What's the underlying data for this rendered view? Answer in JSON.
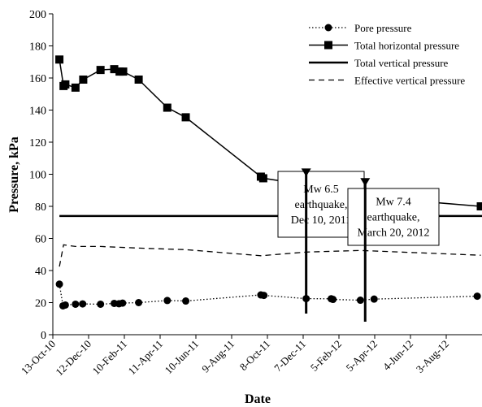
{
  "chart_data": {
    "type": "line",
    "ylabel": "Pressure, kPa",
    "xlabel": "Date",
    "ylim": [
      0,
      200
    ],
    "yticks": [
      0,
      20,
      40,
      60,
      80,
      100,
      120,
      140,
      160,
      180,
      200
    ],
    "xlim_date": [
      "2010-10-13",
      "2012-10-02"
    ],
    "xticks": [
      {
        "date": "2010-10-13",
        "label": "13-Oct-10"
      },
      {
        "date": "2010-12-12",
        "label": "12-Dec-10"
      },
      {
        "date": "2011-02-10",
        "label": "10-Feb-11"
      },
      {
        "date": "2011-04-11",
        "label": "11-Apr-11"
      },
      {
        "date": "2011-06-10",
        "label": "10-Jun-11"
      },
      {
        "date": "2011-08-09",
        "label": "9-Aug-11"
      },
      {
        "date": "2011-10-08",
        "label": "8-Oct-11"
      },
      {
        "date": "2011-12-07",
        "label": "7-Dec-11"
      },
      {
        "date": "2012-02-05",
        "label": "5-Feb-12"
      },
      {
        "date": "2012-04-05",
        "label": "5-Apr-12"
      },
      {
        "date": "2012-06-04",
        "label": "4-Jun-12"
      },
      {
        "date": "2012-08-03",
        "label": "3-Aug-12"
      }
    ],
    "legend_position": "top-right",
    "series": [
      {
        "name": "Pore pressure",
        "style": "dotted",
        "marker": "circle",
        "x": [
          "2010-10-24",
          "2010-10-30",
          "2010-11-03",
          "2010-11-20",
          "2010-12-02",
          "2011-01-01",
          "2011-01-24",
          "2011-02-01",
          "2011-02-07",
          "2011-03-06",
          "2011-04-23",
          "2011-05-24",
          "2011-09-27",
          "2011-10-02",
          "2011-12-12",
          "2012-01-23",
          "2012-01-26",
          "2012-03-12",
          "2012-04-04",
          "2012-09-24"
        ],
        "values": [
          31.5,
          18,
          18.5,
          19,
          19.2,
          19,
          19.5,
          19.3,
          19.7,
          20,
          21.3,
          21,
          24.8,
          24.5,
          22.5,
          22.4,
          22,
          21.5,
          22.2,
          24
        ]
      },
      {
        "name": "Total horizontal pressure",
        "style": "solid",
        "marker": "square",
        "x": [
          "2010-10-24",
          "2010-10-31",
          "2010-11-03",
          "2010-11-20",
          "2010-12-03",
          "2011-01-01",
          "2011-01-24",
          "2011-02-02",
          "2011-02-08",
          "2011-03-06",
          "2011-04-23",
          "2011-05-24",
          "2011-09-27",
          "2011-10-01",
          "2011-12-10",
          "2011-12-12",
          "2012-01-22",
          "2012-01-28",
          "2012-03-12",
          "2012-04-04",
          "2012-09-30"
        ],
        "values": [
          171.5,
          155,
          156,
          154,
          159,
          165,
          165.5,
          164,
          164,
          159,
          141.5,
          135.5,
          98.5,
          97.5,
          93.5,
          75,
          91,
          91,
          86.5,
          85.5,
          80
        ]
      },
      {
        "name": "Total vertical pressure",
        "style": "solid-thick",
        "marker": "none",
        "x": [
          "2010-10-24",
          "2012-10-02"
        ],
        "values": [
          74,
          74
        ]
      },
      {
        "name": "Effective vertical pressure",
        "style": "dashed",
        "marker": "none",
        "x": [
          "2010-10-24",
          "2010-10-31",
          "2010-11-20",
          "2011-01-01",
          "2011-03-06",
          "2011-05-24",
          "2011-09-27",
          "2011-12-12",
          "2012-01-26",
          "2012-03-12",
          "2012-09-30"
        ],
        "values": [
          42.5,
          56,
          55,
          55,
          54,
          53,
          49.2,
          51.5,
          52,
          52.5,
          49.5
        ]
      }
    ],
    "annotations": [
      {
        "lines": [
          "Mw 6.5",
          "earthquake,",
          "Dec 10, 2011"
        ],
        "arrow_x": "2011-12-12",
        "arrow_tip_y": 93.5
      },
      {
        "lines": [
          "Mw 7.4",
          "earthquake,",
          "March 20, 2012"
        ],
        "arrow_x": "2012-03-20",
        "arrow_tip_y": 87.5
      }
    ]
  }
}
